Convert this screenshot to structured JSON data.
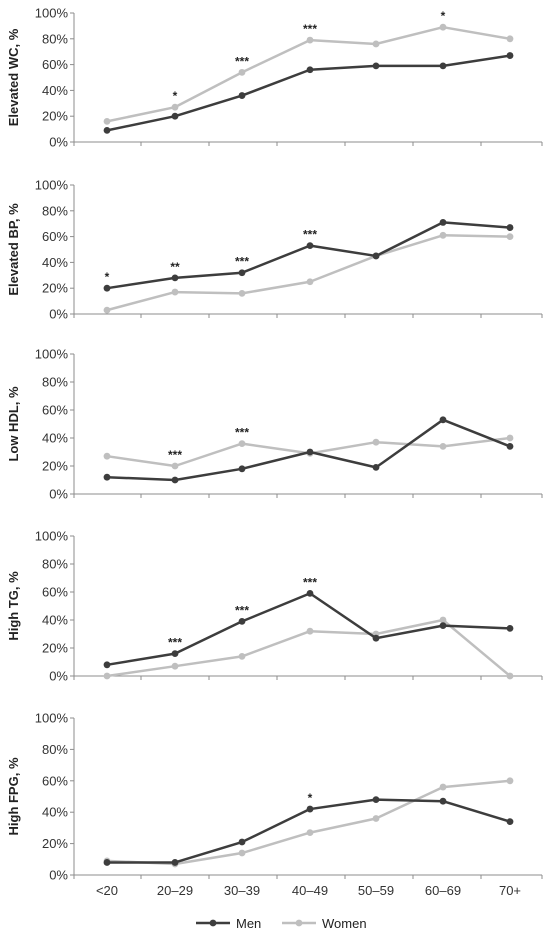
{
  "chart_data": [
    {
      "type": "line",
      "ylabel": "Elevated WC, %",
      "categories": [
        "<20",
        "20–29",
        "30–39",
        "40–49",
        "50–59",
        "60–69",
        "70+"
      ],
      "ylim": [
        0,
        100
      ],
      "yticks": [
        "0%",
        "20%",
        "40%",
        "60%",
        "80%",
        "100%"
      ],
      "series": [
        {
          "name": "Men",
          "color": "#3d3d3d",
          "values": [
            9,
            20,
            36,
            56,
            59,
            59,
            67
          ]
        },
        {
          "name": "Women",
          "color": "#bfbfbf",
          "values": [
            16,
            27,
            54,
            79,
            76,
            89,
            80
          ]
        }
      ],
      "significance": [
        {
          "index": 1,
          "label": "*"
        },
        {
          "index": 2,
          "label": "***"
        },
        {
          "index": 3,
          "label": "***"
        },
        {
          "index": 5,
          "label": "*"
        }
      ]
    },
    {
      "type": "line",
      "ylabel": "Elevated BP, %",
      "categories": [
        "<20",
        "20–29",
        "30–39",
        "40–49",
        "50–59",
        "60–69",
        "70+"
      ],
      "ylim": [
        0,
        100
      ],
      "yticks": [
        "0%",
        "20%",
        "40%",
        "60%",
        "80%",
        "100%"
      ],
      "series": [
        {
          "name": "Men",
          "color": "#3d3d3d",
          "values": [
            20,
            28,
            32,
            53,
            45,
            71,
            67
          ]
        },
        {
          "name": "Women",
          "color": "#bfbfbf",
          "values": [
            3,
            17,
            16,
            25,
            45,
            61,
            60
          ]
        }
      ],
      "significance": [
        {
          "index": 0,
          "label": "*"
        },
        {
          "index": 1,
          "label": "**"
        },
        {
          "index": 2,
          "label": "***"
        },
        {
          "index": 3,
          "label": "***"
        }
      ]
    },
    {
      "type": "line",
      "ylabel": "Low HDL, %",
      "categories": [
        "<20",
        "20–29",
        "30–39",
        "40–49",
        "50–59",
        "60–69",
        "70+"
      ],
      "ylim": [
        0,
        100
      ],
      "yticks": [
        "0%",
        "20%",
        "40%",
        "60%",
        "80%",
        "100%"
      ],
      "series": [
        {
          "name": "Men",
          "color": "#3d3d3d",
          "values": [
            12,
            10,
            18,
            30,
            19,
            53,
            34
          ]
        },
        {
          "name": "Women",
          "color": "#bfbfbf",
          "values": [
            27,
            20,
            36,
            29,
            37,
            34,
            40
          ]
        }
      ],
      "significance": [
        {
          "index": 1,
          "label": "***"
        },
        {
          "index": 2,
          "label": "***"
        }
      ]
    },
    {
      "type": "line",
      "ylabel": "High TG, %",
      "categories": [
        "<20",
        "20–29",
        "30–39",
        "40–49",
        "50–59",
        "60–69",
        "70+"
      ],
      "ylim": [
        0,
        100
      ],
      "yticks": [
        "0%",
        "20%",
        "40%",
        "60%",
        "80%",
        "100%"
      ],
      "series": [
        {
          "name": "Men",
          "color": "#3d3d3d",
          "values": [
            8,
            16,
            39,
            59,
            27,
            36,
            34
          ]
        },
        {
          "name": "Women",
          "color": "#bfbfbf",
          "values": [
            0,
            7,
            14,
            32,
            30,
            40,
            0
          ]
        }
      ],
      "significance": [
        {
          "index": 1,
          "label": "***"
        },
        {
          "index": 2,
          "label": "***"
        },
        {
          "index": 3,
          "label": "***"
        }
      ]
    },
    {
      "type": "line",
      "ylabel": "High FPG, %",
      "categories": [
        "<20",
        "20–29",
        "30–39",
        "40–49",
        "50–59",
        "60–69",
        "70+"
      ],
      "ylim": [
        0,
        100
      ],
      "yticks": [
        "0%",
        "20%",
        "40%",
        "60%",
        "80%",
        "100%"
      ],
      "series": [
        {
          "name": "Men",
          "color": "#3d3d3d",
          "values": [
            8,
            8,
            21,
            42,
            48,
            47,
            34
          ]
        },
        {
          "name": "Women",
          "color": "#bfbfbf",
          "values": [
            9,
            7,
            14,
            27,
            36,
            56,
            60
          ]
        }
      ],
      "significance": [
        {
          "index": 3,
          "label": "*"
        }
      ]
    }
  ],
  "legend": {
    "items": [
      {
        "label": "Men",
        "color": "#3d3d3d"
      },
      {
        "label": "Women",
        "color": "#bfbfbf"
      }
    ]
  }
}
